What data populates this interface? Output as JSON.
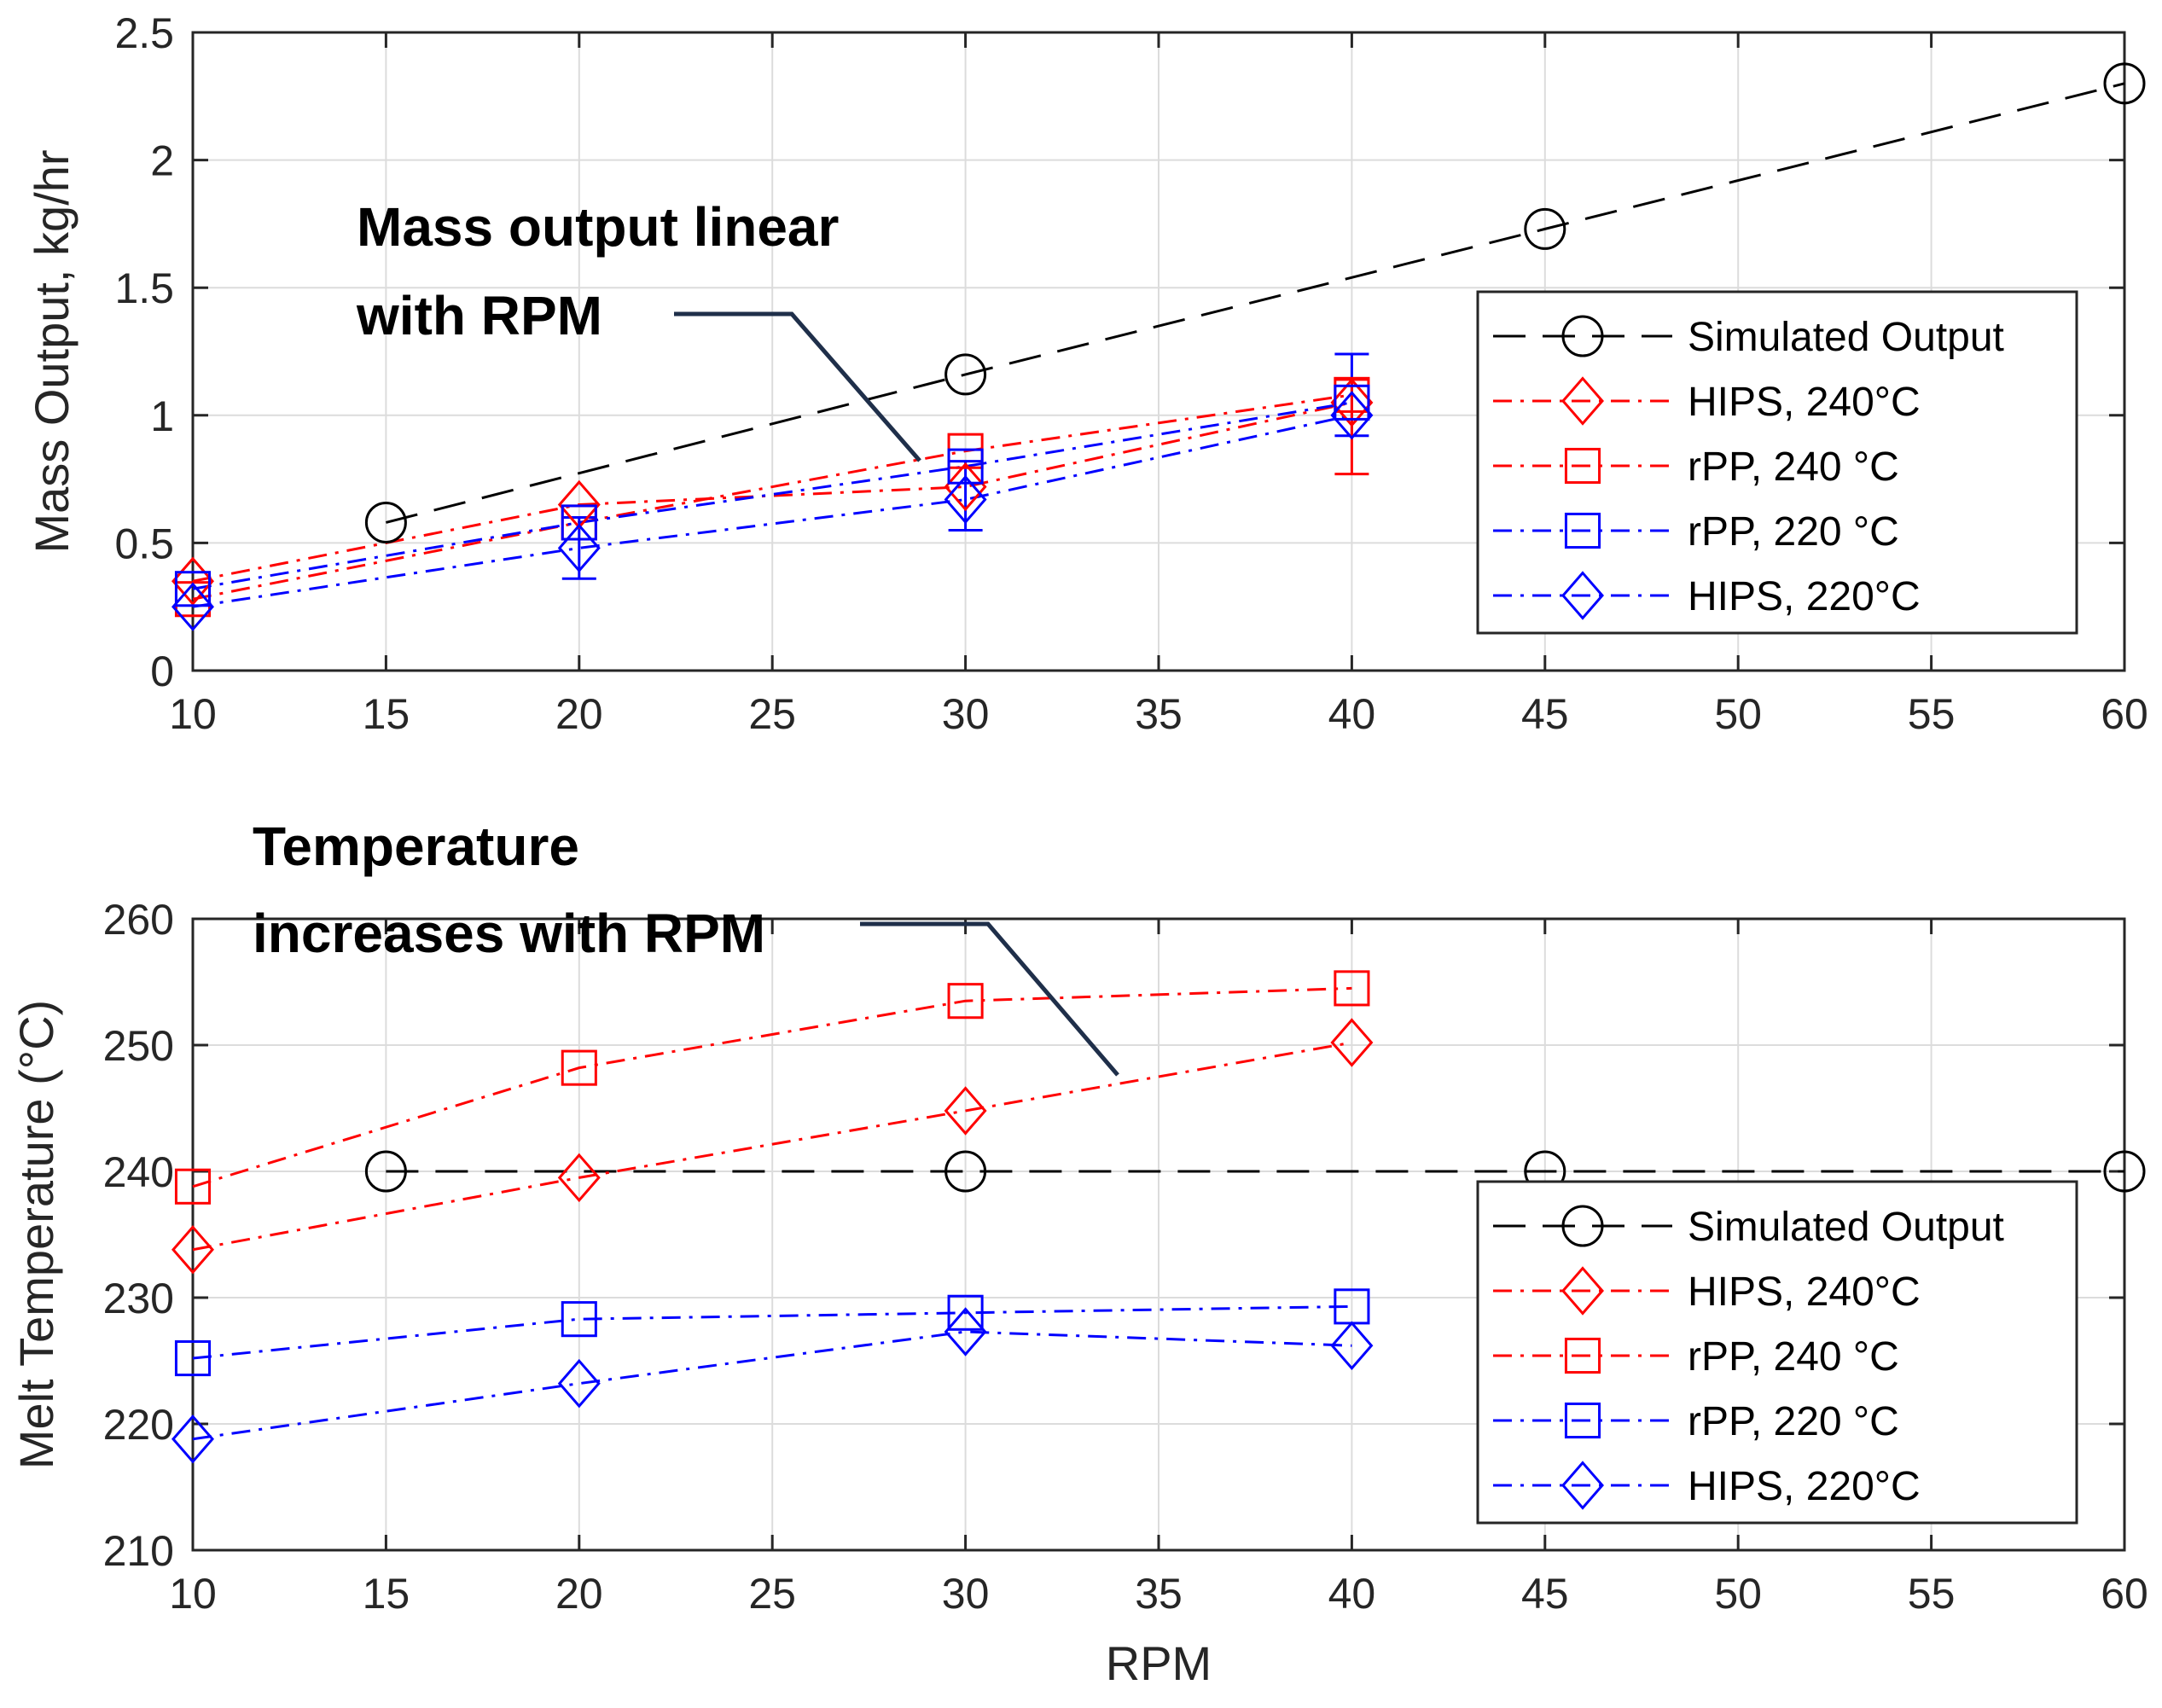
{
  "chart_data": [
    {
      "type": "line",
      "title": "",
      "xlabel": "",
      "ylabel": "Mass Output, kg/hr",
      "xlim": [
        10,
        60
      ],
      "ylim": [
        0,
        2.5
      ],
      "xticks": [
        "10",
        "15",
        "20",
        "25",
        "30",
        "35",
        "40",
        "45",
        "50",
        "55",
        "60"
      ],
      "yticks": [
        "0",
        "0.5",
        "1",
        "1.5",
        "2",
        "2.5"
      ],
      "grid": true,
      "legend_position": "lower-right",
      "annotation": {
        "lines": [
          "Mass output linear",
          "with RPM"
        ]
      },
      "series": [
        {
          "name": "Simulated Output",
          "color": "#000000",
          "dash": "dashed",
          "marker": "circle",
          "x": [
            15,
            30,
            45,
            60
          ],
          "y": [
            0.58,
            1.16,
            1.73,
            2.3
          ]
        },
        {
          "name": "HIPS, 240°C",
          "color": "#ff0000",
          "dash": "dashdot",
          "marker": "diamond",
          "x": [
            10,
            20,
            30,
            40
          ],
          "y": [
            0.35,
            0.65,
            0.72,
            1.05
          ]
        },
        {
          "name": "rPP, 240 °C",
          "color": "#ff0000",
          "dash": "dashdot",
          "marker": "square",
          "x": [
            10,
            20,
            30,
            40
          ],
          "y": [
            0.28,
            0.58,
            0.86,
            1.08
          ]
        },
        {
          "name": "rPP, 220 °C",
          "color": "#0000ff",
          "dash": "dashdot",
          "marker": "square",
          "x": [
            10,
            20,
            30,
            40
          ],
          "y": [
            0.32,
            0.58,
            0.8,
            1.05
          ]
        },
        {
          "name": "HIPS, 220°C",
          "color": "#0000ff",
          "dash": "dashdot",
          "marker": "diamond",
          "x": [
            10,
            20,
            30,
            40
          ],
          "y": [
            0.25,
            0.48,
            0.67,
            1.0
          ]
        }
      ],
      "error_bars": [
        {
          "series": 3,
          "x": 20,
          "low": 0.36,
          "high": 0.6
        },
        {
          "series": 3,
          "x": 30,
          "low": 0.55,
          "high": 0.82
        },
        {
          "series": 3,
          "x": 40,
          "low": 0.92,
          "high": 1.24
        },
        {
          "series": 1,
          "x": 40,
          "low": 0.77,
          "high": 1.14
        }
      ]
    },
    {
      "type": "line",
      "title": "",
      "xlabel": "RPM",
      "ylabel": "Melt Temperature (°C)",
      "xlim": [
        10,
        60
      ],
      "ylim": [
        210,
        260
      ],
      "xticks": [
        "10",
        "15",
        "20",
        "25",
        "30",
        "35",
        "40",
        "45",
        "50",
        "55",
        "60"
      ],
      "yticks": [
        "210",
        "220",
        "230",
        "240",
        "250",
        "260"
      ],
      "grid": true,
      "legend_position": "lower-right",
      "annotation": {
        "lines": [
          "Temperature",
          "increases with RPM"
        ]
      },
      "series": [
        {
          "name": "Simulated Output",
          "color": "#000000",
          "dash": "dashed",
          "marker": "circle",
          "x": [
            15,
            30,
            45,
            60
          ],
          "y": [
            240,
            240,
            240,
            240
          ]
        },
        {
          "name": "HIPS, 240°C",
          "color": "#ff0000",
          "dash": "dashdot",
          "marker": "diamond",
          "x": [
            10,
            20,
            30,
            40
          ],
          "y": [
            233.8,
            239.5,
            244.8,
            250.2
          ]
        },
        {
          "name": "rPP, 240 °C",
          "color": "#ff0000",
          "dash": "dashdot",
          "marker": "square",
          "x": [
            10,
            20,
            30,
            40
          ],
          "y": [
            238.8,
            248.2,
            253.5,
            254.5
          ]
        },
        {
          "name": "rPP, 220 °C",
          "color": "#0000ff",
          "dash": "dashdot",
          "marker": "square",
          "x": [
            10,
            20,
            30,
            40
          ],
          "y": [
            225.2,
            228.3,
            228.8,
            229.3
          ]
        },
        {
          "name": "HIPS, 220°C",
          "color": "#0000ff",
          "dash": "dashdot",
          "marker": "diamond",
          "x": [
            10,
            20,
            30,
            40
          ],
          "y": [
            218.8,
            223.2,
            227.3,
            226.2
          ]
        }
      ],
      "error_bars": []
    }
  ]
}
